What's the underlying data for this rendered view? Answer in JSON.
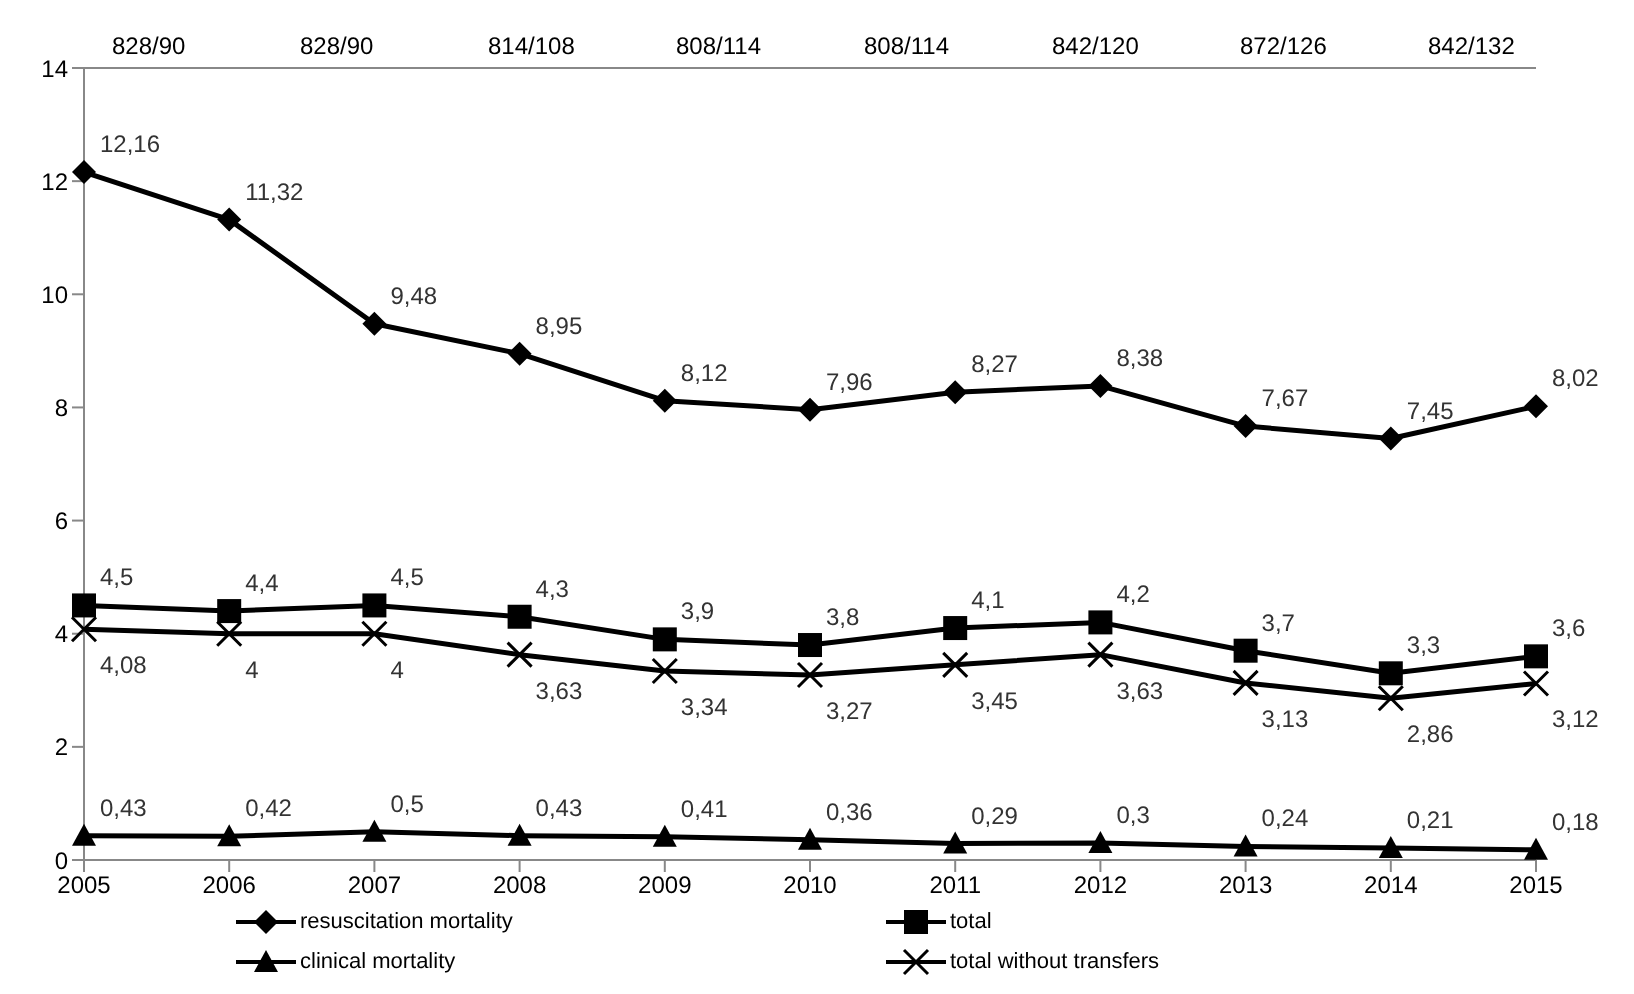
{
  "chart_data": {
    "type": "line",
    "categories": [
      "2005",
      "2006",
      "2007",
      "2008",
      "2009",
      "2010",
      "2011",
      "2012",
      "2013",
      "2014",
      "2015"
    ],
    "annotations": [
      "828/90",
      "828/90",
      "814/108",
      "808/114",
      "808/114",
      "842/120",
      "872/126",
      "842/132"
    ],
    "series": [
      {
        "name": "resuscitation mortality",
        "color": "#000000",
        "marker": "diamond",
        "values": [
          12.16,
          11.32,
          9.48,
          8.95,
          8.12,
          7.96,
          8.27,
          8.38,
          7.67,
          7.45,
          8.02
        ],
        "value_labels": [
          "12,16",
          "11,32",
          "9,48",
          "8,95",
          "8,12",
          "7,96",
          "8,27",
          "8,38",
          "7,67",
          "7,45",
          "8,02"
        ]
      },
      {
        "name": "total",
        "color": "#000000",
        "marker": "square",
        "values": [
          4.5,
          4.4,
          4.5,
          4.3,
          3.9,
          3.8,
          4.1,
          4.2,
          3.7,
          3.3,
          3.6
        ],
        "value_labels": [
          "4,5",
          "4,4",
          "4,5",
          "4,3",
          "3,9",
          "3,8",
          "4,1",
          "4,2",
          "3,7",
          "3,3",
          "3,6"
        ]
      },
      {
        "name": "clinical mortality",
        "color": "#000000",
        "marker": "triangle",
        "values": [
          0.43,
          0.42,
          0.5,
          0.43,
          0.41,
          0.36,
          0.29,
          0.3,
          0.24,
          0.21,
          0.18
        ],
        "value_labels": [
          "0,43",
          "0,42",
          "0,5",
          "0,43",
          "0,41",
          "0,36",
          "0,29",
          "0,3",
          "0,24",
          "0,21",
          "0,18"
        ]
      },
      {
        "name": "total without transfers",
        "color": "#000000",
        "marker": "cross",
        "values": [
          4.08,
          4,
          4,
          3.63,
          3.34,
          3.27,
          3.45,
          3.63,
          3.13,
          2.86,
          3.12
        ],
        "value_labels": [
          "4,08",
          "4",
          "4",
          "3,63",
          "3,34",
          "3,27",
          "3,45",
          "3,63",
          "3,13",
          "2,86",
          "3,12"
        ]
      }
    ],
    "ylim": [
      0,
      14
    ],
    "yticks": [
      0,
      2,
      4,
      6,
      8,
      10,
      12,
      14
    ],
    "grid": false,
    "legend": "bottom",
    "line_style": "solid"
  }
}
